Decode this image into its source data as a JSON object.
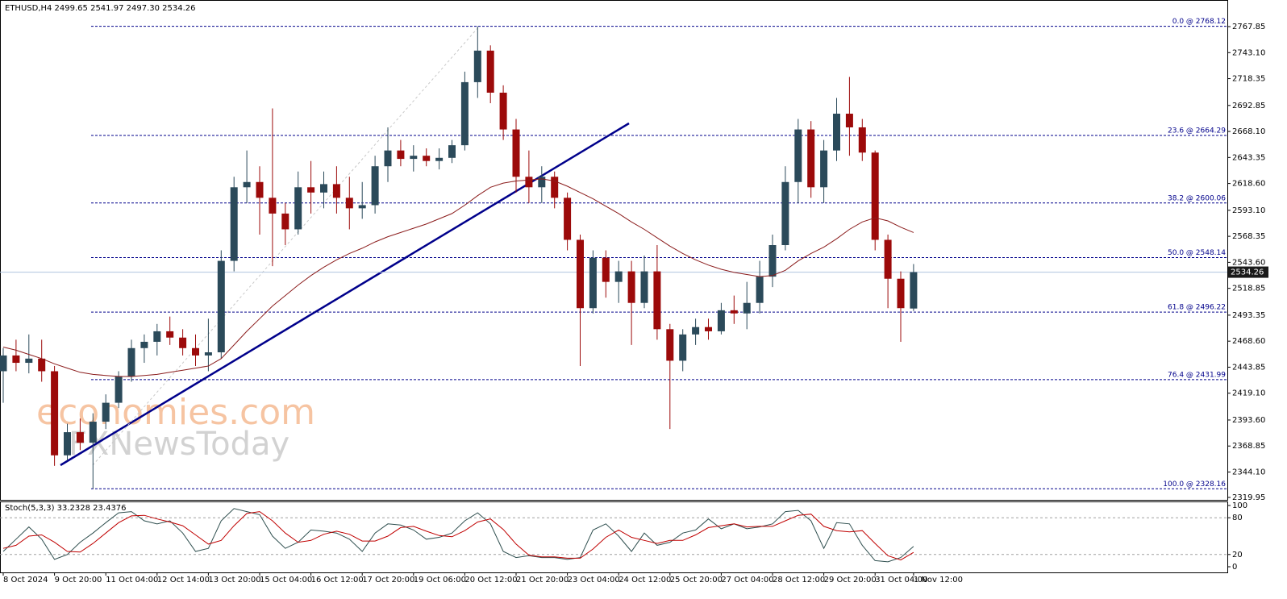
{
  "chart_data": [
    {
      "type": "candlestick",
      "title": "ETHUSD,H4  2499.65 2541.97 2497.30 2534.26",
      "watermark": [
        "economies.com",
        "FXNewsToday"
      ],
      "categories": [
        "8 Oct 2024",
        null,
        null,
        null,
        "9 Oct 20:00",
        null,
        null,
        null,
        "11 Oct 04:00",
        null,
        null,
        null,
        "12 Oct 14:00",
        null,
        null,
        null,
        "13 Oct 20:00",
        null,
        null,
        null,
        "15 Oct 04:00",
        null,
        null,
        null,
        "16 Oct 12:00",
        null,
        null,
        null,
        "17 Oct 20:00",
        null,
        null,
        null,
        "19 Oct 06:00",
        null,
        null,
        null,
        "20 Oct 12:00",
        null,
        null,
        null,
        "21 Oct 20:00",
        null,
        null,
        null,
        "23 Oct 04:00",
        null,
        null,
        null,
        "24 Oct 12:00",
        null,
        null,
        null,
        "25 Oct 20:00",
        null,
        null,
        null,
        "27 Oct 04:00",
        null,
        null,
        null,
        "28 Oct 12:00",
        null,
        null,
        null,
        "29 Oct 20:00",
        null,
        null,
        null,
        "31 Oct 04:00",
        null,
        null,
        "1 Nov 12:00"
      ],
      "open": [
        2440,
        2455,
        2448,
        2452,
        2440,
        2360,
        2382,
        2372,
        2392,
        2410,
        2435,
        2462,
        2468,
        2478,
        2472,
        2462,
        2455,
        2458,
        2545,
        2615,
        2620,
        2605,
        2590,
        2575,
        2615,
        2610,
        2618,
        2605,
        2595,
        2598,
        2635,
        2650,
        2642,
        2645,
        2640,
        2643,
        2655,
        2715,
        2745,
        2705,
        2670,
        2625,
        2615,
        2625,
        2605,
        2565,
        2500,
        2548,
        2525,
        2535,
        2505,
        2535,
        2480,
        2450,
        2475,
        2482,
        2478,
        2498,
        2495,
        2505,
        2530,
        2560,
        2620,
        2670,
        2615,
        2650,
        2685,
        2672,
        2648,
        2565,
        2528,
        2499.65
      ],
      "high": [
        2462,
        2470,
        2475,
        2470,
        2445,
        2390,
        2395,
        2400,
        2418,
        2440,
        2470,
        2475,
        2485,
        2492,
        2480,
        2475,
        2490,
        2555,
        2625,
        2650,
        2635,
        2690,
        2600,
        2630,
        2640,
        2630,
        2635,
        2625,
        2620,
        2645,
        2672,
        2660,
        2655,
        2652,
        2652,
        2660,
        2725,
        2768.12,
        2750,
        2712,
        2680,
        2650,
        2635,
        2630,
        2610,
        2570,
        2555,
        2555,
        2545,
        2545,
        2550,
        2560,
        2485,
        2480,
        2490,
        2490,
        2505,
        2512,
        2525,
        2545,
        2570,
        2635,
        2680,
        2678,
        2660,
        2700,
        2720,
        2680,
        2650,
        2570,
        2535,
        2541.97
      ],
      "low": [
        2410,
        2440,
        2438,
        2430,
        2350,
        2355,
        2365,
        2328.16,
        2385,
        2405,
        2430,
        2448,
        2455,
        2465,
        2455,
        2445,
        2440,
        2452,
        2535,
        2600,
        2570,
        2540,
        2560,
        2570,
        2590,
        2595,
        2590,
        2575,
        2585,
        2590,
        2620,
        2635,
        2630,
        2635,
        2632,
        2638,
        2650,
        2700,
        2695,
        2660,
        2610,
        2600,
        2600,
        2595,
        2555,
        2445,
        2495,
        2510,
        2505,
        2465,
        2500,
        2470,
        2385,
        2440,
        2465,
        2470,
        2475,
        2485,
        2480,
        2495,
        2520,
        2555,
        2600,
        2605,
        2600,
        2640,
        2645,
        2640,
        2555,
        2500,
        2468,
        2497.3
      ],
      "close": [
        2455,
        2448,
        2452,
        2440,
        2360,
        2382,
        2372,
        2392,
        2410,
        2435,
        2462,
        2468,
        2478,
        2472,
        2462,
        2455,
        2458,
        2545,
        2615,
        2620,
        2605,
        2590,
        2575,
        2615,
        2610,
        2618,
        2605,
        2595,
        2598,
        2635,
        2650,
        2642,
        2645,
        2640,
        2643,
        2655,
        2715,
        2745,
        2705,
        2670,
        2625,
        2615,
        2625,
        2605,
        2565,
        2500,
        2548,
        2525,
        2535,
        2505,
        2535,
        2480,
        2450,
        2475,
        2482,
        2478,
        2498,
        2495,
        2505,
        2530,
        2560,
        2620,
        2670,
        2615,
        2650,
        2685,
        2672,
        2648,
        2565,
        2528,
        2500,
        2534.26
      ],
      "up_color": "#2b4a5a",
      "down_color": "#9c0a0a",
      "ma": {
        "color": "#8b1c1c",
        "values": [
          2463,
          2460,
          2456,
          2452,
          2447,
          2443,
          2439,
          2437,
          2436,
          2435,
          2435,
          2436,
          2437,
          2439,
          2441,
          2443,
          2445,
          2452,
          2465,
          2478,
          2490,
          2502,
          2512,
          2522,
          2531,
          2539,
          2546,
          2552,
          2557,
          2563,
          2568,
          2572,
          2576,
          2580,
          2585,
          2590,
          2598,
          2607,
          2615,
          2619,
          2621,
          2622,
          2623,
          2621,
          2616,
          2610,
          2604,
          2597,
          2590,
          2582,
          2575,
          2567,
          2559,
          2552,
          2546,
          2541,
          2537,
          2534,
          2532,
          2530,
          2531,
          2536,
          2545,
          2552,
          2558,
          2566,
          2575,
          2582,
          2586,
          2583,
          2577,
          2572
        ]
      },
      "fib_levels": [
        {
          "value": 2768.12,
          "label": "0.0 @ 2768.12"
        },
        {
          "value": 2664.29,
          "label": "23.6 @ 2664.29"
        },
        {
          "value": 2600.06,
          "label": "38.2 @ 2600.06"
        },
        {
          "value": 2548.14,
          "label": "50.0 @ 2548.14"
        },
        {
          "value": 2496.22,
          "label": "61.8 @ 2496.22"
        },
        {
          "value": 2431.99,
          "label": "76.4 @ 2431.99"
        },
        {
          "value": 2328.16,
          "label": "100.0 @ 2328.16"
        }
      ],
      "fib_color": "#00008b",
      "current_price": 2534.26,
      "ylim": [
        2317.65,
        2793.16
      ],
      "yticks": [
        {
          "value": 2767.85,
          "label": "2767.85"
        },
        {
          "value": 2743.1,
          "label": "2743.10"
        },
        {
          "value": 2718.35,
          "label": "2718.35"
        },
        {
          "value": 2692.85,
          "label": "2692.85"
        },
        {
          "value": 2668.1,
          "label": "2668.10"
        },
        {
          "value": 2643.35,
          "label": "2643.35"
        },
        {
          "value": 2618.6,
          "label": "2618.60"
        },
        {
          "value": 2593.1,
          "label": "2593.10"
        },
        {
          "value": 2568.35,
          "label": "2568.35"
        },
        {
          "value": 2543.6,
          "label": "2543.60"
        },
        {
          "value": 2518.85,
          "label": "2518.85"
        },
        {
          "value": 2493.35,
          "label": "2493.35"
        },
        {
          "value": 2468.6,
          "label": "2468.60"
        },
        {
          "value": 2443.85,
          "label": "2443.85"
        },
        {
          "value": 2419.1,
          "label": "2419.10"
        },
        {
          "value": 2393.6,
          "label": "2393.60"
        },
        {
          "value": 2368.85,
          "label": "2368.85"
        },
        {
          "value": 2344.1,
          "label": "2344.10"
        },
        {
          "value": 2319.95,
          "label": "2319.95"
        }
      ]
    },
    {
      "type": "line",
      "title": "Stoch(5,3,3) 33.2328 23.4376",
      "series": [
        {
          "color": "#2f4f4f",
          "values": [
            25,
            45,
            65,
            45,
            12,
            20,
            40,
            55,
            72,
            88,
            90,
            75,
            70,
            75,
            55,
            25,
            30,
            75,
            95,
            90,
            85,
            50,
            30,
            40,
            60,
            58,
            55,
            45,
            25,
            55,
            70,
            68,
            60,
            45,
            48,
            55,
            75,
            88,
            70,
            25,
            15,
            18,
            15,
            15,
            12,
            15,
            60,
            70,
            50,
            25,
            55,
            35,
            40,
            55,
            60,
            78,
            62,
            70,
            62,
            65,
            70,
            90,
            92,
            75,
            30,
            72,
            70,
            35,
            10,
            8,
            15,
            33.2328
          ]
        },
        {
          "color": "#c00000",
          "values": [
            30,
            35,
            50,
            52,
            40,
            25,
            24,
            38,
            55,
            72,
            83,
            84,
            78,
            73,
            67,
            52,
            37,
            43,
            67,
            87,
            90,
            75,
            55,
            40,
            43,
            53,
            58,
            53,
            42,
            42,
            50,
            64,
            66,
            58,
            51,
            49,
            59,
            73,
            78,
            61,
            37,
            19,
            16,
            16,
            14,
            14,
            29,
            48,
            60,
            48,
            43,
            38,
            43,
            43,
            52,
            64,
            67,
            70,
            65,
            66,
            66,
            75,
            84,
            86,
            66,
            59,
            57,
            59,
            38,
            18,
            11,
            23.4376
          ]
        }
      ],
      "levels": [
        80,
        20
      ],
      "ylim": [
        -9.2,
        106.6
      ],
      "yticks": [
        100,
        80,
        20,
        0
      ]
    }
  ]
}
